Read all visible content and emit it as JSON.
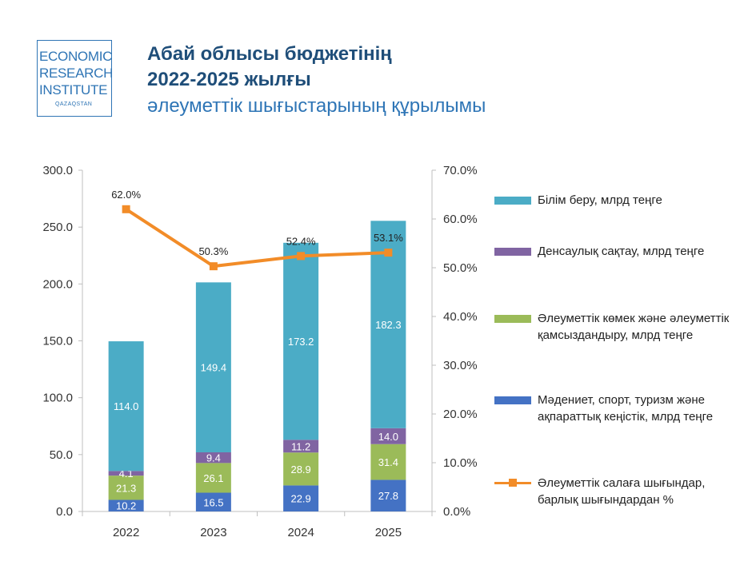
{
  "logo": {
    "line1": "ECONOMIC",
    "line2": "RESEARCH",
    "line3": "INSTITUTE",
    "line4": "QAZAQSTAN"
  },
  "header": {
    "title_line1": "Абай облысы бюджетінің",
    "title_line2": "2022-2025 жылғы",
    "subtitle": "әлеуметтік шығыстарының құрылымы"
  },
  "chart_data": {
    "type": "bar",
    "stacked": true,
    "categories": [
      "2022",
      "2023",
      "2024",
      "2025"
    ],
    "series": [
      {
        "name": "Мәдениет, спорт, туризм және ақпараттық кеңістік, млрд теңге",
        "values": [
          10.2,
          16.5,
          22.9,
          27.8
        ],
        "color": "#4472c4",
        "labels": [
          "10.2",
          "16.5",
          "22.9",
          "27.8"
        ]
      },
      {
        "name": "Әлеуметтік көмек және әлеуметтік қамсыздандыру, млрд теңге",
        "values": [
          21.3,
          26.1,
          28.9,
          31.4
        ],
        "color": "#9bbb59",
        "labels": [
          "21.3",
          "26.1",
          "28.9",
          "31.4"
        ]
      },
      {
        "name": "Денсаулық сақтау, млрд теңге",
        "values": [
          4.1,
          9.4,
          11.2,
          14.0
        ],
        "color": "#8064a2",
        "labels": [
          "4.1",
          "9.4",
          "11.2",
          "14.0"
        ]
      },
      {
        "name": "Білім беру, млрд теңге",
        "values": [
          114.0,
          149.4,
          173.2,
          182.3
        ],
        "color": "#4bacc6",
        "labels": [
          "114.0",
          "149.4",
          "173.2",
          "182.3"
        ]
      }
    ],
    "line_series": {
      "name": "Әлеуметтік салаға шығындар, барлық шығындардан %",
      "values": [
        62.0,
        50.3,
        52.4,
        53.1
      ],
      "labels": [
        "62.0%",
        "50.3%",
        "52.4%",
        "53.1%"
      ],
      "color": "#f28c28"
    },
    "ylim": [
      0,
      300
    ],
    "y_ticks": [
      "0.0",
      "50.0",
      "100.0",
      "150.0",
      "200.0",
      "250.0",
      "300.0"
    ],
    "y2lim": [
      0,
      70
    ],
    "y2_ticks": [
      "0.0%",
      "10.0%",
      "20.0%",
      "30.0%",
      "40.0%",
      "50.0%",
      "60.0%",
      "70.0%"
    ],
    "legend_position": "right",
    "legend_entries": [
      {
        "label": "Білім беру, млрд теңге",
        "color": "#4bacc6",
        "kind": "box"
      },
      {
        "label": "Денсаулық сақтау, млрд теңге",
        "color": "#8064a2",
        "kind": "box"
      },
      {
        "label": "Әлеуметтік көмек және әлеуметтік қамсыздандыру, млрд теңге",
        "color": "#9bbb59",
        "kind": "box"
      },
      {
        "label": "Мәдениет, спорт, туризм және ақпараттық кеңістік, млрд теңге",
        "color": "#4472c4",
        "kind": "box"
      },
      {
        "label": "Әлеуметтік салаға шығындар, барлық шығындардан %",
        "color": "#f28c28",
        "kind": "line"
      }
    ]
  }
}
